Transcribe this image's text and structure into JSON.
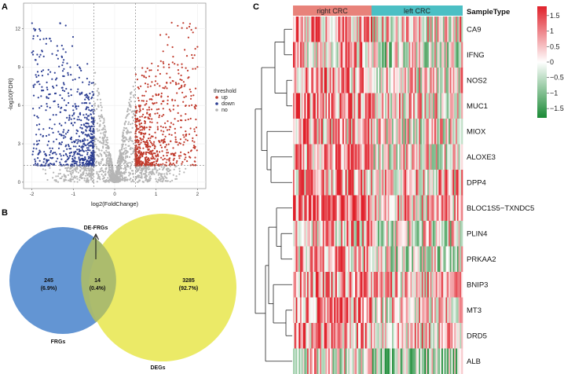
{
  "panels": {
    "a": "A",
    "b": "B",
    "c": "C"
  },
  "chart_data": [
    {
      "type": "scatter",
      "panel": "A",
      "title": "",
      "xlabel": "log2(FoldChange)",
      "ylabel": "-log10(FDR)",
      "xlim": [
        -2.2,
        2.2
      ],
      "ylim": [
        -0.5,
        14
      ],
      "x_ticks": [
        "-2",
        "-1",
        "0",
        "1",
        "2"
      ],
      "y_ticks": [
        "0",
        "3",
        "6",
        "9",
        "12"
      ],
      "legend_title": "threshold",
      "legend": [
        {
          "name": "up",
          "color": "#c0392b"
        },
        {
          "name": "down",
          "color": "#2c3e93"
        },
        {
          "name": "no",
          "color": "#b5b5b5"
        }
      ],
      "thresholds": {
        "fold_change_abs": 0.5,
        "fdr_neglog": 1.3
      },
      "series": [
        {
          "name": "down",
          "x_range": [
            -2.0,
            -0.5
          ],
          "y_range": [
            1.3,
            12.5
          ]
        },
        {
          "name": "up",
          "x_range": [
            0.5,
            2.0
          ],
          "y_range": [
            1.3,
            12.5
          ]
        },
        {
          "name": "no",
          "x_range": [
            -0.5,
            0.5
          ],
          "y_range": [
            0,
            10
          ]
        }
      ]
    },
    {
      "type": "venn",
      "panel": "B",
      "sets": [
        {
          "name": "FRGs",
          "only_count": "245",
          "only_pct": "(6.9%)",
          "color": "#5b8fd1"
        },
        {
          "name": "DEGs",
          "only_count": "3285",
          "only_pct": "(92.7%)",
          "color": "#eae95f"
        }
      ],
      "intersection": {
        "name": "DE-FRGs",
        "count": "14",
        "pct": "(0.4%)"
      }
    },
    {
      "type": "heatmap",
      "panel": "C",
      "annotation_title": "SampleType",
      "sample_groups": [
        {
          "name": "right CRC",
          "color": "#e8827a"
        },
        {
          "name": "left CRC",
          "color": "#4bbfc4"
        }
      ],
      "rows": [
        "CA9",
        "IFNG",
        "NOS2",
        "MUC1",
        "MIOX",
        "ALOXE3",
        "DPP4",
        "BLOC1S5−TXNDC5",
        "PLIN4",
        "PRKAA2",
        "BNIP3",
        "MT3",
        "DRD5",
        "ALB"
      ],
      "row_bias": [
        0.55,
        0.1,
        0.45,
        0.6,
        0.35,
        0.5,
        0.65,
        0.75,
        0.25,
        0.15,
        0.7,
        0.5,
        0.55,
        -0.2
      ],
      "colorbar": {
        "ticks": [
          "1.5",
          "1",
          "0.5",
          "0",
          "−0.5",
          "−1",
          "−1.5"
        ],
        "range": [
          -1.8,
          1.8
        ],
        "colors": {
          "high": "#e0212b",
          "mid": "#ffffff",
          "low": "#1a8a35"
        }
      }
    }
  ]
}
